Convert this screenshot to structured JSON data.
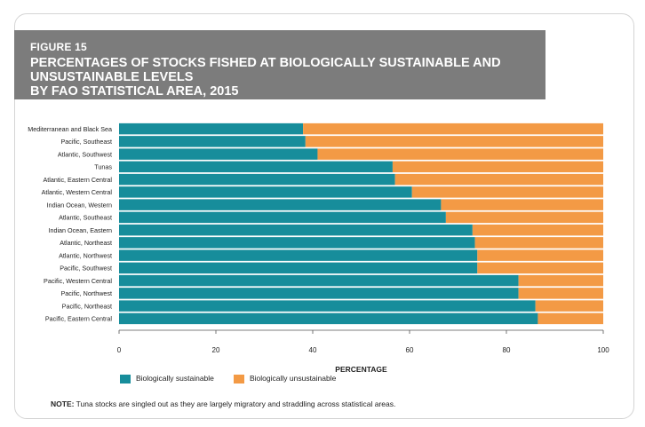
{
  "figure": {
    "label": "FIGURE 15",
    "title_line1": "PERCENTAGES OF STOCKS FISHED AT BIOLOGICALLY SUSTAINABLE AND UNSUSTAINABLE LEVELS",
    "title_line2": "BY FAO STATISTICAL AREA, 2015"
  },
  "note": {
    "prefix": "NOTE:",
    "text": " Tuna stocks are singled out as they are largely migratory and straddling across statistical areas."
  },
  "colors": {
    "sustainable": "#178d9b",
    "unsustainable": "#f39a45",
    "header_bg": "#7c7c7c"
  },
  "chart_data": {
    "type": "bar",
    "orientation": "horizontal",
    "stacked": true,
    "categories": [
      "Mediterranean and Black Sea",
      "Pacific, Southeast",
      "Atlantic, Southwest",
      "Tunas",
      "Atlantic, Eastern Central",
      "Atlantic, Western Central",
      "Indian Ocean, Western",
      "Atlantic, Southeast",
      "Indian Ocean, Eastern",
      "Atlantic, Northeast",
      "Atlantic, Northwest",
      "Pacific, Southwest",
      "Pacific, Western Central",
      "Pacific, Northwest",
      "Pacific, Northeast",
      "Pacific, Eastern Central"
    ],
    "series": [
      {
        "name": "Biologically sustainable",
        "values": [
          38,
          38.5,
          41,
          56.5,
          57,
          60.5,
          66.5,
          67.5,
          73,
          73.5,
          74,
          74,
          82.5,
          82.5,
          86,
          86.5
        ]
      },
      {
        "name": "Biologically unsustainable",
        "values": [
          62,
          61.5,
          59,
          43.5,
          43,
          39.5,
          33.5,
          32.5,
          27,
          26.5,
          26,
          26,
          17.5,
          17.5,
          14,
          13.5
        ]
      }
    ],
    "xlabel": "PERCENTAGE",
    "xlim": [
      0,
      100
    ],
    "xticks": [
      "0",
      "20",
      "40",
      "60",
      "80",
      "100"
    ],
    "legend_position": "bottom-left"
  }
}
